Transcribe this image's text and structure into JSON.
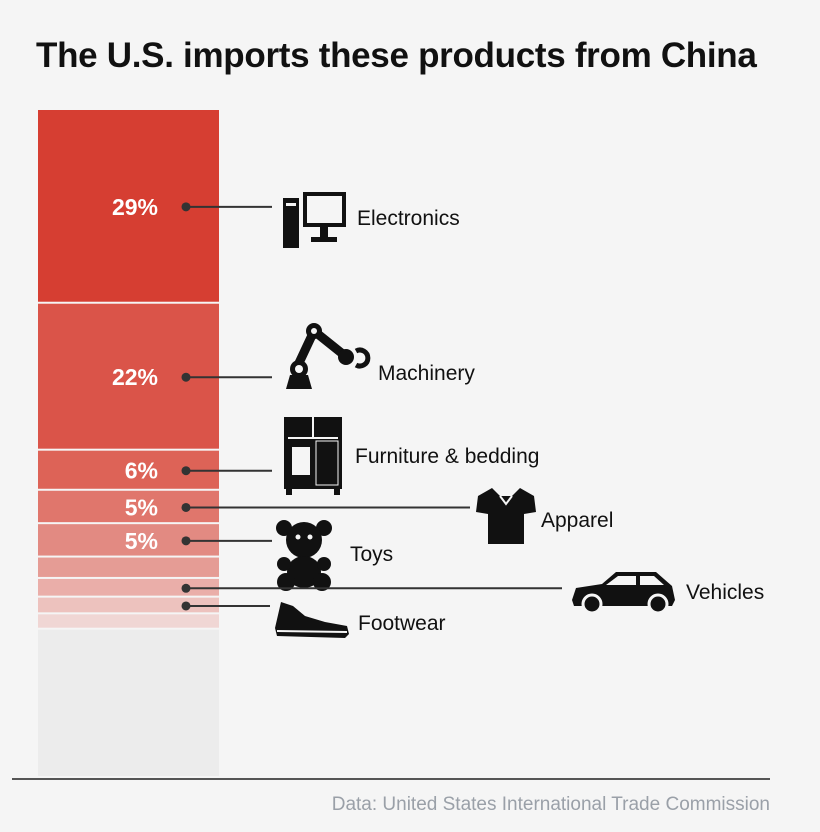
{
  "title": "The U.S. imports these products from China",
  "source": "Data: United States International Trade Commission",
  "chart_data": {
    "type": "bar",
    "stacked": true,
    "title": "The U.S. imports these products from China",
    "unit": "%",
    "segments": [
      {
        "category": "Electronics",
        "value": 29,
        "label": "29%",
        "color": "#d63e32",
        "icon": "computer-icon"
      },
      {
        "category": "Machinery",
        "value": 22,
        "label": "22%",
        "color": "#da5449",
        "icon": "robot-arm-icon"
      },
      {
        "category": "Furniture & bedding",
        "value": 6,
        "label": "6%",
        "color": "#dd6357",
        "icon": "wardrobe-icon"
      },
      {
        "category": "Apparel",
        "value": 5,
        "label": "5%",
        "color": "#e0766c",
        "icon": "shirt-icon"
      },
      {
        "category": "Toys",
        "value": 5,
        "label": "5%",
        "color": "#e28a82",
        "icon": "teddy-bear-icon"
      },
      {
        "category": "",
        "value": 3.2,
        "label": "",
        "color": "#e59c95"
      },
      {
        "category": "Vehicles",
        "value": 2.8,
        "label": "",
        "color": "#eaaea9",
        "icon": "car-icon"
      },
      {
        "category": "Footwear",
        "value": 2.5,
        "label": "",
        "color": "#edc2be",
        "icon": "sneaker-icon"
      },
      {
        "category": "",
        "value": 2.3,
        "label": "",
        "color": "#f0d6d4"
      },
      {
        "category": "",
        "value": 22.2,
        "label": "",
        "color": "#ececec"
      }
    ],
    "grid": false,
    "legend": "none"
  }
}
